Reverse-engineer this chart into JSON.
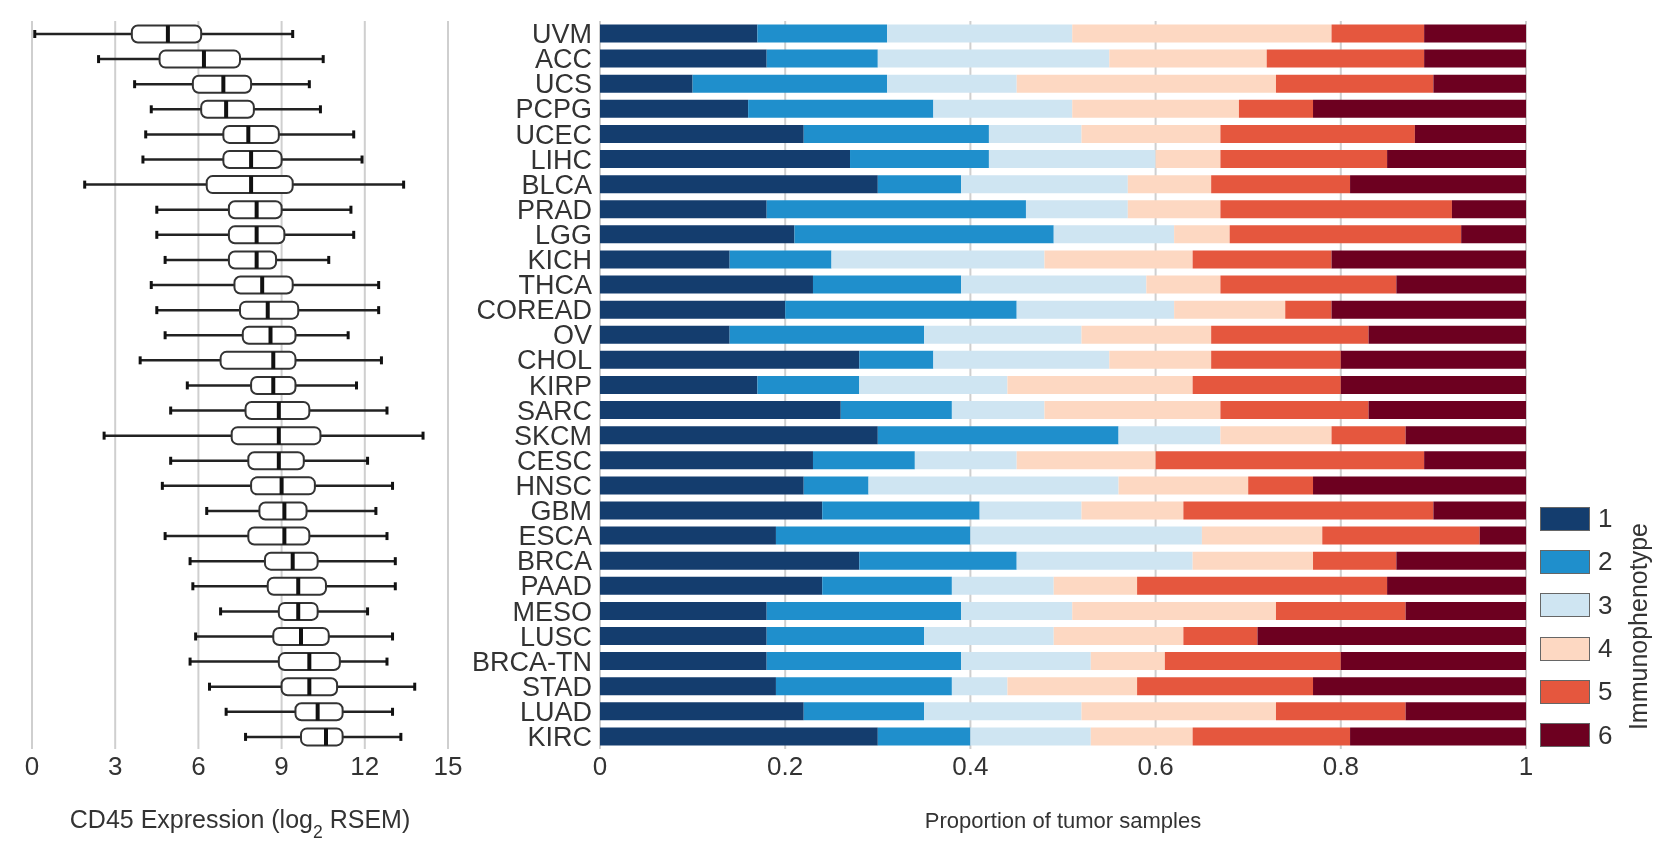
{
  "chart_data": [
    {
      "type": "box",
      "orientation": "horizontal",
      "boxes": [
        {
          "low": 0.1,
          "q1": 3.6,
          "median": 4.9,
          "q3": 6.1,
          "high": 9.4
        },
        {
          "low": 2.4,
          "q1": 4.6,
          "median": 6.2,
          "q3": 7.5,
          "high": 10.5
        },
        {
          "low": 3.7,
          "q1": 5.8,
          "median": 6.9,
          "q3": 7.9,
          "high": 10.0
        },
        {
          "low": 4.3,
          "q1": 6.1,
          "median": 7.0,
          "q3": 8.0,
          "high": 10.4
        },
        {
          "low": 4.1,
          "q1": 6.9,
          "median": 7.8,
          "q3": 8.9,
          "high": 11.6
        },
        {
          "low": 4.0,
          "q1": 6.9,
          "median": 7.9,
          "q3": 9.0,
          "high": 11.9
        },
        {
          "low": 1.9,
          "q1": 6.3,
          "median": 7.9,
          "q3": 9.4,
          "high": 13.4
        },
        {
          "low": 4.5,
          "q1": 7.1,
          "median": 8.1,
          "q3": 9.0,
          "high": 11.5
        },
        {
          "low": 4.5,
          "q1": 7.1,
          "median": 8.1,
          "q3": 9.1,
          "high": 11.6
        },
        {
          "low": 4.8,
          "q1": 7.1,
          "median": 8.1,
          "q3": 8.8,
          "high": 10.7
        },
        {
          "low": 4.3,
          "q1": 7.3,
          "median": 8.3,
          "q3": 9.4,
          "high": 12.5
        },
        {
          "low": 4.5,
          "q1": 7.5,
          "median": 8.5,
          "q3": 9.6,
          "high": 12.5
        },
        {
          "low": 4.8,
          "q1": 7.6,
          "median": 8.6,
          "q3": 9.5,
          "high": 11.4
        },
        {
          "low": 3.9,
          "q1": 6.8,
          "median": 8.7,
          "q3": 9.5,
          "high": 12.6
        },
        {
          "low": 5.6,
          "q1": 7.9,
          "median": 8.7,
          "q3": 9.5,
          "high": 11.7
        },
        {
          "low": 5.0,
          "q1": 7.7,
          "median": 8.9,
          "q3": 10.0,
          "high": 12.8
        },
        {
          "low": 2.6,
          "q1": 7.2,
          "median": 8.9,
          "q3": 10.4,
          "high": 14.1
        },
        {
          "low": 5.0,
          "q1": 7.8,
          "median": 8.9,
          "q3": 9.8,
          "high": 12.1
        },
        {
          "low": 4.7,
          "q1": 7.9,
          "median": 9.0,
          "q3": 10.2,
          "high": 13.0
        },
        {
          "low": 6.3,
          "q1": 8.2,
          "median": 9.1,
          "q3": 9.9,
          "high": 12.4
        },
        {
          "low": 4.8,
          "q1": 7.8,
          "median": 9.1,
          "q3": 10.0,
          "high": 12.8
        },
        {
          "low": 5.7,
          "q1": 8.4,
          "median": 9.4,
          "q3": 10.3,
          "high": 13.1
        },
        {
          "low": 5.8,
          "q1": 8.5,
          "median": 9.6,
          "q3": 10.6,
          "high": 13.1
        },
        {
          "low": 6.8,
          "q1": 8.9,
          "median": 9.6,
          "q3": 10.3,
          "high": 12.1
        },
        {
          "low": 5.9,
          "q1": 8.7,
          "median": 9.7,
          "q3": 10.7,
          "high": 13.0
        },
        {
          "low": 5.7,
          "q1": 8.9,
          "median": 10.0,
          "q3": 11.1,
          "high": 12.8
        },
        {
          "low": 6.4,
          "q1": 9.0,
          "median": 10.0,
          "q3": 11.0,
          "high": 13.8
        },
        {
          "low": 7.0,
          "q1": 9.5,
          "median": 10.3,
          "q3": 11.2,
          "high": 13.0
        },
        {
          "low": 7.7,
          "q1": 9.7,
          "median": 10.6,
          "q3": 11.2,
          "high": 13.3
        }
      ],
      "xlim": [
        0,
        15
      ],
      "xticks": [
        0,
        3,
        6,
        9,
        12,
        15
      ],
      "xlabel": "CD45 Expression (log$_{2}$ RSEM)",
      "grid": "x",
      "tick_labels": "x"
    },
    {
      "type": "bar",
      "orientation": "horizontal",
      "stacked": true,
      "categories": [
        "UVM",
        "ACC",
        "UCS",
        "PCPG",
        "UCEC",
        "LIHC",
        "BLCA",
        "PRAD",
        "LGG",
        "KICH",
        "THCA",
        "COREAD",
        "OV",
        "CHOL",
        "KIRP",
        "SARC",
        "SKCM",
        "CESC",
        "HNSC",
        "GBM",
        "ESCA",
        "BRCA",
        "PAAD",
        "MESO",
        "LUSC",
        "BRCA-TN",
        "STAD",
        "LUAD",
        "KIRC"
      ],
      "series": [
        {
          "name": "1",
          "color": "#143d6e",
          "values": [
            0.17,
            0.18,
            0.1,
            0.16,
            0.22,
            0.27,
            0.3,
            0.18,
            0.21,
            0.14,
            0.23,
            0.2,
            0.14,
            0.28,
            0.17,
            0.26,
            0.3,
            0.23,
            0.22,
            0.24,
            0.19,
            0.28,
            0.24,
            0.18,
            0.18,
            0.18,
            0.19,
            0.22,
            0.3
          ]
        },
        {
          "name": "2",
          "color": "#1f8fcc",
          "values": [
            0.14,
            0.12,
            0.21,
            0.2,
            0.2,
            0.15,
            0.09,
            0.28,
            0.28,
            0.11,
            0.16,
            0.25,
            0.21,
            0.08,
            0.11,
            0.12,
            0.26,
            0.11,
            0.07,
            0.17,
            0.21,
            0.17,
            0.14,
            0.21,
            0.17,
            0.21,
            0.19,
            0.13,
            0.1
          ]
        },
        {
          "name": "3",
          "color": "#cfe5f2",
          "values": [
            0.2,
            0.25,
            0.14,
            0.15,
            0.1,
            0.18,
            0.18,
            0.11,
            0.13,
            0.23,
            0.2,
            0.17,
            0.17,
            0.19,
            0.16,
            0.1,
            0.11,
            0.11,
            0.27,
            0.11,
            0.25,
            0.19,
            0.11,
            0.12,
            0.14,
            0.14,
            0.06,
            0.17,
            0.13
          ]
        },
        {
          "name": "4",
          "color": "#fdd8c2",
          "values": [
            0.28,
            0.17,
            0.28,
            0.18,
            0.15,
            0.07,
            0.09,
            0.1,
            0.06,
            0.16,
            0.08,
            0.12,
            0.14,
            0.11,
            0.2,
            0.19,
            0.12,
            0.15,
            0.14,
            0.11,
            0.13,
            0.13,
            0.09,
            0.22,
            0.14,
            0.08,
            0.14,
            0.21,
            0.11
          ]
        },
        {
          "name": "5",
          "color": "#e5573e",
          "values": [
            0.1,
            0.17,
            0.17,
            0.08,
            0.21,
            0.18,
            0.15,
            0.25,
            0.25,
            0.15,
            0.19,
            0.05,
            0.17,
            0.14,
            0.16,
            0.16,
            0.08,
            0.29,
            0.07,
            0.27,
            0.17,
            0.09,
            0.27,
            0.14,
            0.08,
            0.19,
            0.19,
            0.14,
            0.17
          ]
        },
        {
          "name": "6",
          "color": "#6d0020",
          "values": [
            0.11,
            0.11,
            0.1,
            0.23,
            0.12,
            0.15,
            0.19,
            0.08,
            0.07,
            0.21,
            0.14,
            0.21,
            0.17,
            0.2,
            0.2,
            0.17,
            0.13,
            0.11,
            0.23,
            0.1,
            0.05,
            0.14,
            0.15,
            0.13,
            0.29,
            0.2,
            0.23,
            0.13,
            0.19
          ]
        }
      ],
      "xlim": [
        0,
        1
      ],
      "xticks": [
        0,
        0.2,
        0.4,
        0.6,
        0.8,
        1
      ],
      "xlabel": "Proportion of tumor samples",
      "grid": "x",
      "legend": "right",
      "legend_title": "Immunophenotype"
    }
  ]
}
